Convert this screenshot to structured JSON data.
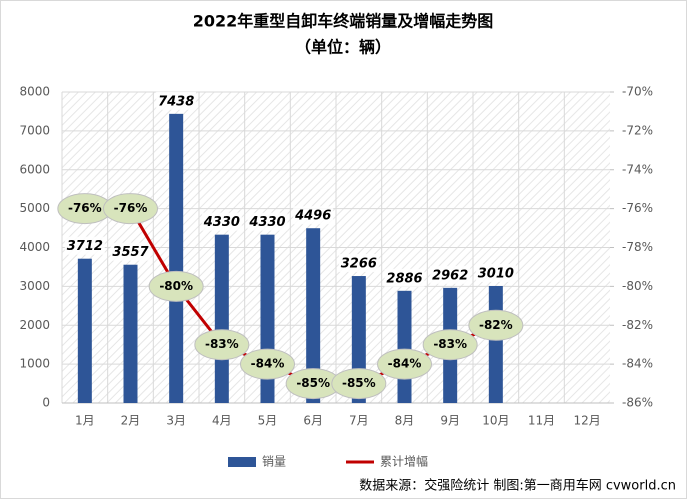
{
  "chart_data": {
    "type": "bar-line",
    "title": "2022年重型自卸车终端销量及增幅走势图",
    "subtitle": "（单位：辆）",
    "source": "数据来源：交强险统计  制图:第一商用车网 cvworld.cn",
    "categories": [
      "1月",
      "2月",
      "3月",
      "4月",
      "5月",
      "6月",
      "7月",
      "8月",
      "9月",
      "10月",
      "11月",
      "12月"
    ],
    "series": [
      {
        "name": "销量",
        "color": "#2e5597",
        "type": "bar",
        "values": [
          3712,
          3557,
          7438,
          4330,
          4330,
          4496,
          3266,
          2886,
          2962,
          3010,
          null,
          null
        ]
      },
      {
        "name": "累计增幅",
        "color": "#c00000",
        "type": "line",
        "axis": "y2",
        "values": [
          -76,
          -76,
          -80,
          -83,
          -84,
          -85,
          -85,
          -84,
          -83,
          -82,
          null,
          null
        ],
        "value_labels": [
          "-76%",
          "-76%",
          "-80%",
          "-83%",
          "-84%",
          "-85%",
          "-85%",
          "-84%",
          "-83%",
          "-82%",
          null,
          null
        ]
      }
    ],
    "ylim": [
      0,
      8000
    ],
    "yticks": [
      0,
      1000,
      2000,
      3000,
      4000,
      5000,
      6000,
      7000,
      8000
    ],
    "y2lim": [
      -86,
      -70
    ],
    "y2ticks": [
      {
        "value": -86,
        "label": "-86%"
      },
      {
        "value": -84,
        "label": "-84%"
      },
      {
        "value": -82,
        "label": "-82%"
      },
      {
        "value": -80,
        "label": "-80%"
      },
      {
        "value": -78,
        "label": "-78%"
      },
      {
        "value": -76,
        "label": "-76%"
      },
      {
        "value": -74,
        "label": "-74%"
      },
      {
        "value": -72,
        "label": "-72%"
      },
      {
        "value": -70,
        "label": "-70%"
      }
    ],
    "grid": true
  }
}
